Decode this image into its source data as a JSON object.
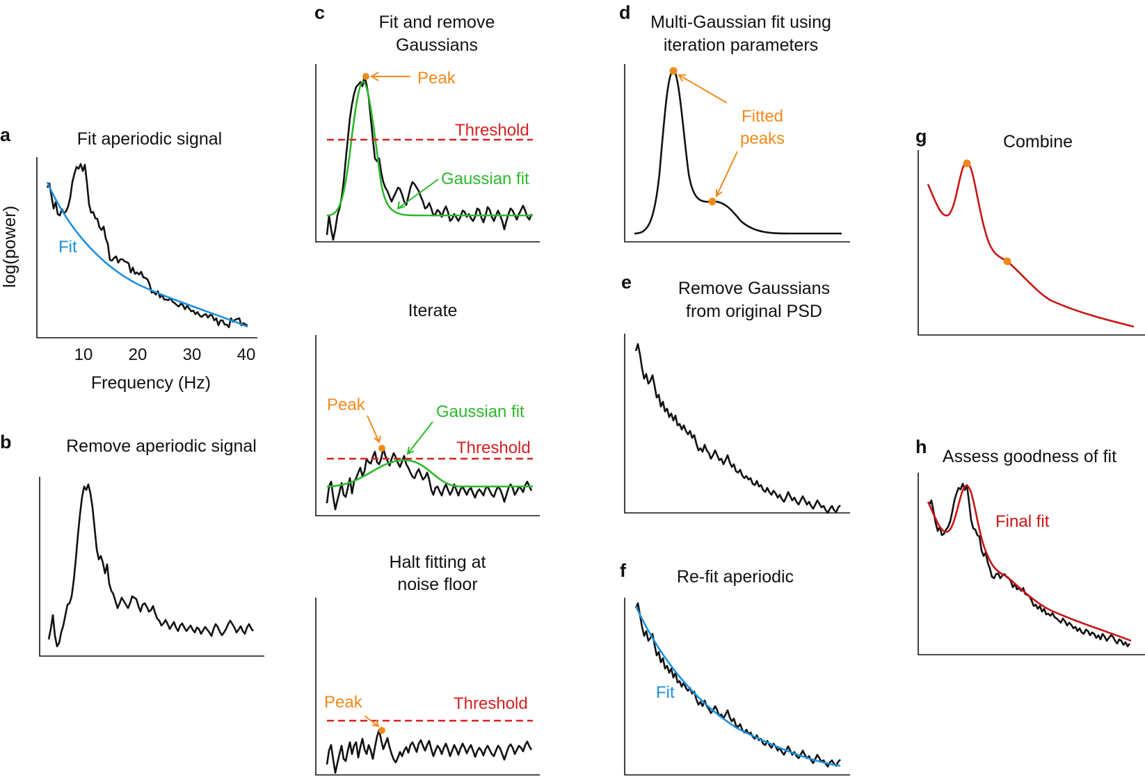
{
  "panels": {
    "a": {
      "letter": "a",
      "title": "Fit aperiodic signal",
      "ylabel": "log(power)",
      "xlabel": "Frequency (Hz)",
      "xticks": [
        "10",
        "20",
        "30",
        "40"
      ],
      "fit_label": "Fit"
    },
    "b": {
      "letter": "b",
      "title": "Remove aperiodic signal"
    },
    "c": {
      "letter": "c",
      "title_1": "Fit and remove",
      "title_2": "Gaussians",
      "peak_label": "Peak",
      "threshold_label": "Threshold",
      "gaussian_label": "Gaussian fit"
    },
    "c2": {
      "title": "Iterate",
      "peak_label": "Peak",
      "threshold_label": "Threshold",
      "gaussian_label": "Gaussian fit"
    },
    "c3": {
      "title_1": "Halt fitting at",
      "title_2": "noise floor",
      "peak_label": "Peak",
      "threshold_label": "Threshold"
    },
    "d": {
      "letter": "d",
      "title_1": "Multi-Gaussian fit using",
      "title_2": "iteration parameters",
      "fitted_label_1": "Fitted",
      "fitted_label_2": "peaks"
    },
    "e": {
      "letter": "e",
      "title_1": "Remove Gaussians",
      "title_2": "from original PSD"
    },
    "f": {
      "letter": "f",
      "title": "Re-fit aperiodic",
      "fit_label": "Fit"
    },
    "g": {
      "letter": "g",
      "title": "Combine"
    },
    "h": {
      "letter": "h",
      "title": "Assess goodness of fit",
      "final_label": "Final fit"
    }
  },
  "colors": {
    "trace": "#111111",
    "aperiodic_fit": "#1a8fe0",
    "gaussian_fit": "#2cb82c",
    "threshold": "#d62020",
    "peak": "#f08a1c",
    "final_fit": "#c81414"
  }
}
